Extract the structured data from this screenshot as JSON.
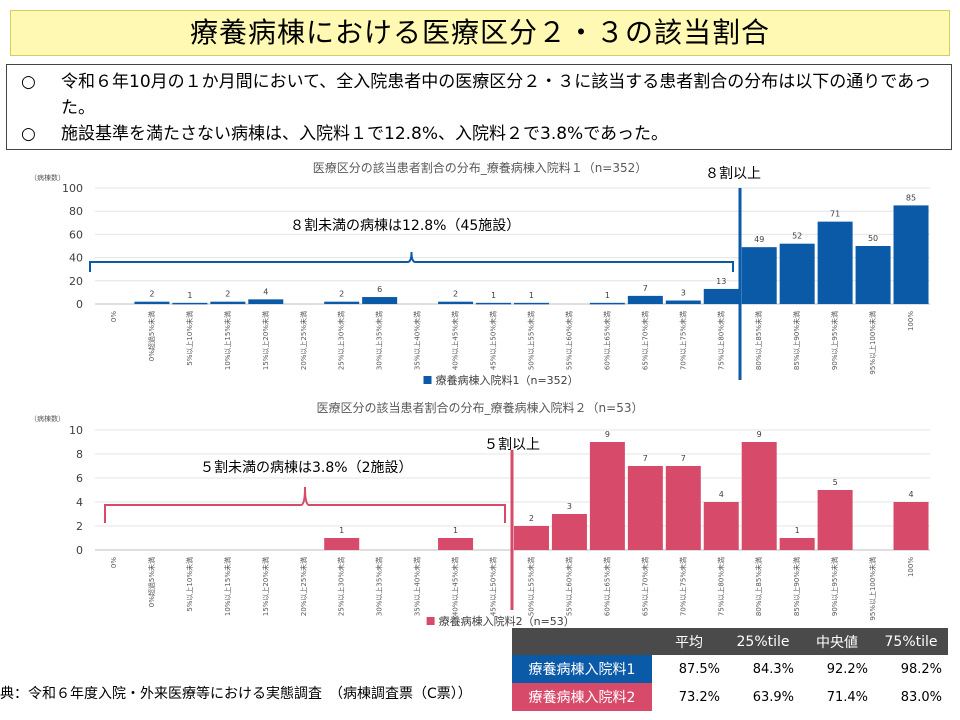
{
  "title": "療養病棟における医療区分２・３の該当割合",
  "summary": {
    "bullet": "○",
    "line1": "令和６年10月の１か月間において、全入院患者中の医療区分２・３に該当する患者割合の分布は以下の通りであった。",
    "line2": "施設基準を満たさない病棟は、入院料１で12.8%、入院料２で3.8%であった。"
  },
  "chart_data": [
    {
      "type": "bar",
      "title": "医療区分の該当患者割合の分布_療養病棟入院料１（n=352）",
      "ylabel": "（病棟数）",
      "ylim": [
        0,
        100
      ],
      "yticks": [
        0,
        20,
        40,
        60,
        80,
        100
      ],
      "categories": [
        "0%",
        "0%超過5%未満",
        "5%以上10%未満",
        "10%以上15%未満",
        "15%以上20%未満",
        "20%以上25%未満",
        "25%以上30%未満",
        "30%以上35%未満",
        "35%以上40%未満",
        "40%以上45%未満",
        "45%以上50%未満",
        "50%以上55%未満",
        "55%以上60%未満",
        "60%以上65%未満",
        "65%以上70%未満",
        "70%以上75%未満",
        "75%以上80%未満",
        "80%以上85%未満",
        "85%以上90%未満",
        "90%以上95%未満",
        "95%以上100%未満",
        "100%"
      ],
      "series": [
        {
          "name": "療養病棟入院料1（n=352）",
          "values": [
            null,
            2,
            1,
            2,
            4,
            null,
            2,
            6,
            null,
            2,
            1,
            1,
            null,
            1,
            7,
            3,
            13,
            49,
            52,
            71,
            50,
            85
          ],
          "color": "#0b5aa8"
        }
      ],
      "threshold_index": 17,
      "threshold_label": "８割以上",
      "brace_label": "８割未満の病棟は12.8%（45施設）",
      "highlight_color": "#0b5aa8",
      "grid": true,
      "legend": "bottom"
    },
    {
      "type": "bar",
      "title": "医療区分の該当患者割合の分布_療養病棟入院料２（n=53）",
      "ylabel": "（病棟数）",
      "ylim": [
        0,
        10
      ],
      "yticks": [
        0,
        2,
        4,
        6,
        8,
        10
      ],
      "categories": [
        "0%",
        "0%超過5%未満",
        "5%以上10%未満",
        "10%以上15%未満",
        "15%以上20%未満",
        "20%以上25%未満",
        "25%以上30%未満",
        "30%以上35%未満",
        "35%以上40%未満",
        "40%以上45%未満",
        "45%以上50%未満",
        "50%以上55%未満",
        "55%以上60%未満",
        "60%以上65%未満",
        "65%以上70%未満",
        "70%以上75%未満",
        "75%以上80%未満",
        "80%以上85%未満",
        "85%以上90%未満",
        "90%以上95%未満",
        "95%以上100%未満",
        "100%"
      ],
      "series": [
        {
          "name": "療養病棟入院料2（n=53）",
          "values": [
            null,
            null,
            null,
            null,
            null,
            null,
            1,
            null,
            null,
            1,
            null,
            2,
            3,
            9,
            7,
            7,
            4,
            9,
            1,
            5,
            null,
            4
          ],
          "color": "#d84a6a"
        }
      ],
      "threshold_index": 11,
      "threshold_label": "５割以上",
      "brace_label": "５割未満の病棟は3.8%（2施設）",
      "highlight_color": "#d84a6a",
      "grid": true,
      "legend": "bottom"
    }
  ],
  "stats_table": {
    "headers": [
      "",
      "平均",
      "25%tile",
      "中央値",
      "75%tile"
    ],
    "rows": [
      {
        "label": "療養病棟入院料1",
        "values": [
          "87.5%",
          "84.3%",
          "92.2%",
          "98.2%"
        ],
        "color": "#0b5aa8"
      },
      {
        "label": "療養病棟入院料2",
        "values": [
          "73.2%",
          "63.9%",
          "71.4%",
          "83.0%"
        ],
        "color": "#d84a6a"
      }
    ]
  },
  "source": "典：令和６年度入院・外来医療等における実態調査　（病棟調査票（C票））"
}
